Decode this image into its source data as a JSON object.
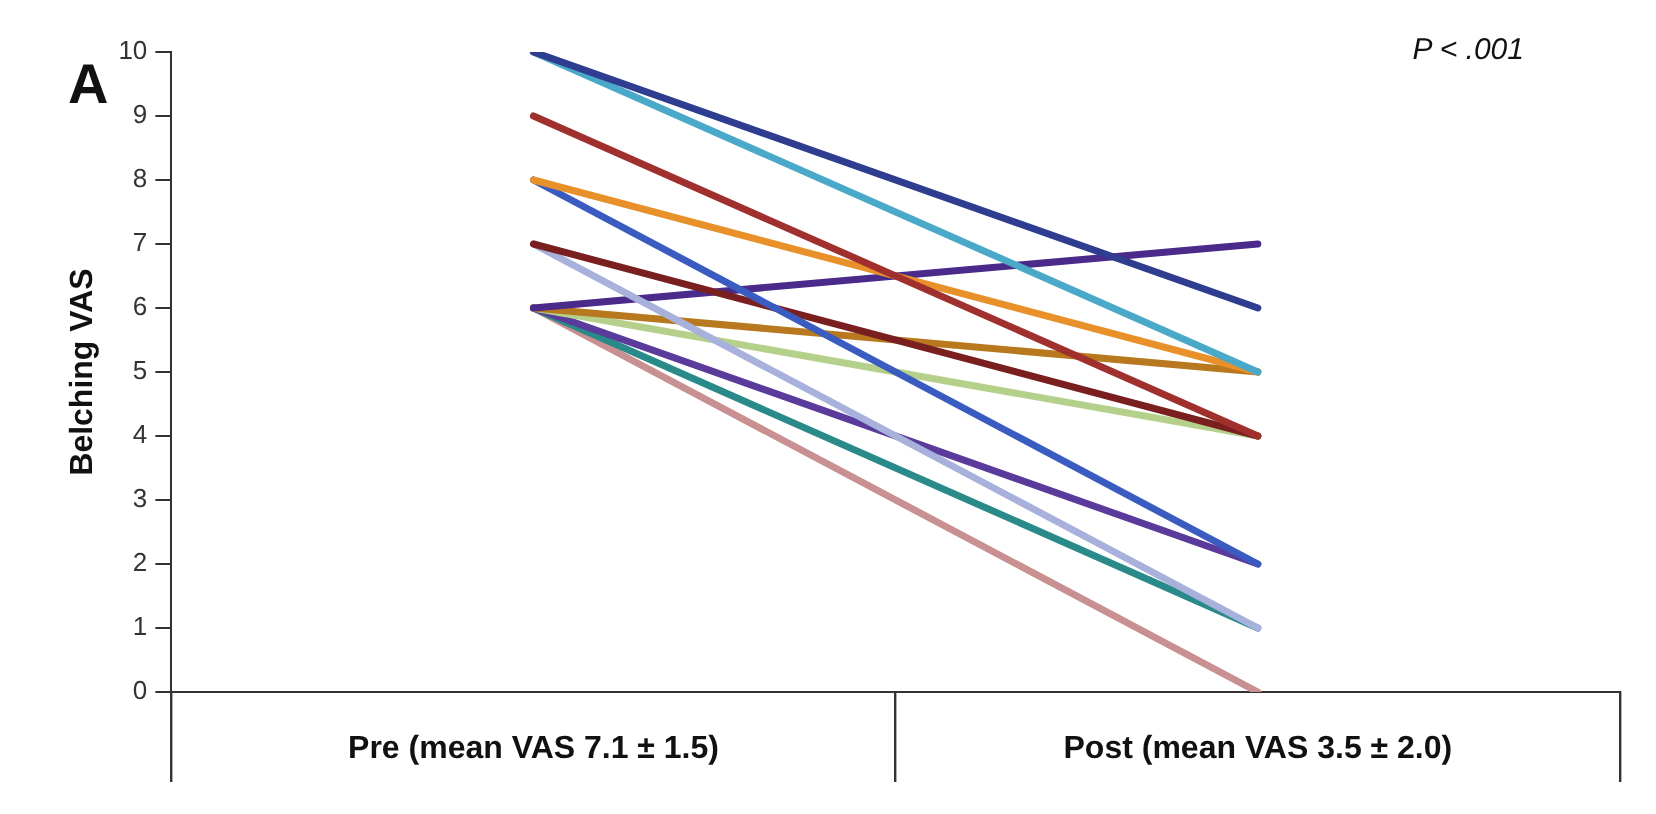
{
  "chart_data": {
    "type": "line",
    "ylabel": "Belching VAS",
    "categories": [
      "Pre (mean VAS 7.1 ± 1.5)",
      "Post (mean VAS 3.5 ± 2.0)"
    ],
    "ylim": [
      0,
      10
    ],
    "yticks": [
      0,
      1,
      2,
      3,
      4,
      5,
      6,
      7,
      8,
      9,
      10
    ],
    "grid": false,
    "legend": false,
    "marker": "none",
    "line_style": "solid",
    "annotations": [
      "A",
      "P < .001"
    ],
    "series": [
      {
        "color": "#2e3d8f",
        "values": [
          10,
          6
        ]
      },
      {
        "color": "#4aa8c8",
        "values": [
          10,
          5
        ]
      },
      {
        "color": "#a0302e",
        "values": [
          9,
          4
        ]
      },
      {
        "color": "#e8902a",
        "values": [
          8,
          5
        ]
      },
      {
        "color": "#3a5cc0",
        "values": [
          8,
          2
        ]
      },
      {
        "color": "#7a1f1f",
        "values": [
          7,
          4
        ]
      },
      {
        "color": "#a8b0dc",
        "values": [
          7,
          1
        ]
      },
      {
        "color": "#4a2a8a",
        "values": [
          6,
          7
        ]
      },
      {
        "color": "#b8781e",
        "values": [
          6,
          5
        ]
      },
      {
        "color": "#b5d08a",
        "values": [
          6,
          4
        ]
      },
      {
        "color": "#5a3a9a",
        "values": [
          6,
          2
        ]
      },
      {
        "color": "#2a8a8a",
        "values": [
          6,
          1
        ]
      },
      {
        "color": "#c89090",
        "values": [
          6,
          0
        ]
      }
    ]
  }
}
